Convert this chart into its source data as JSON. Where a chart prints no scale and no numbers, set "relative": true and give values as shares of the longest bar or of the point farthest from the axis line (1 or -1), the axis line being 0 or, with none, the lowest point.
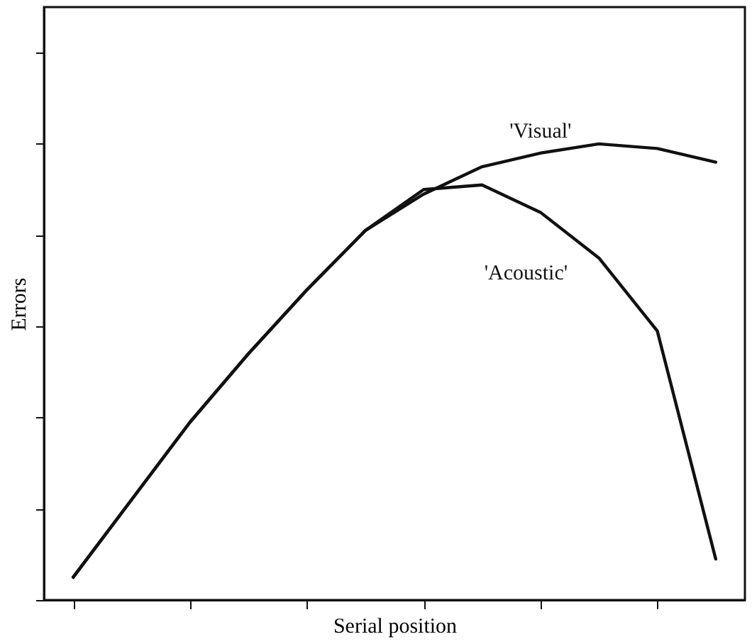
{
  "chart_data": {
    "type": "line",
    "relative": true,
    "xlabel": "Serial position",
    "ylabel": "Errors",
    "tick_labels": false,
    "grid": false,
    "legend": false,
    "marker": "none",
    "line_style": "solid",
    "categories": [
      null,
      null,
      null,
      null,
      null,
      null,
      null,
      null,
      null,
      null,
      null,
      null
    ],
    "series": [
      {
        "name": "'Visual'",
        "color": "#111111",
        "values": [
          0.05,
          0.22,
          0.39,
          0.54,
          0.68,
          0.81,
          0.89,
          0.95,
          0.98,
          1,
          0.99,
          0.96
        ]
      },
      {
        "name": "'Acoustic'",
        "color": "#111111",
        "values": [
          0.05,
          0.22,
          0.39,
          0.54,
          0.68,
          0.81,
          0.9,
          0.91,
          0.85,
          0.75,
          0.59,
          0.09
        ]
      }
    ]
  }
}
